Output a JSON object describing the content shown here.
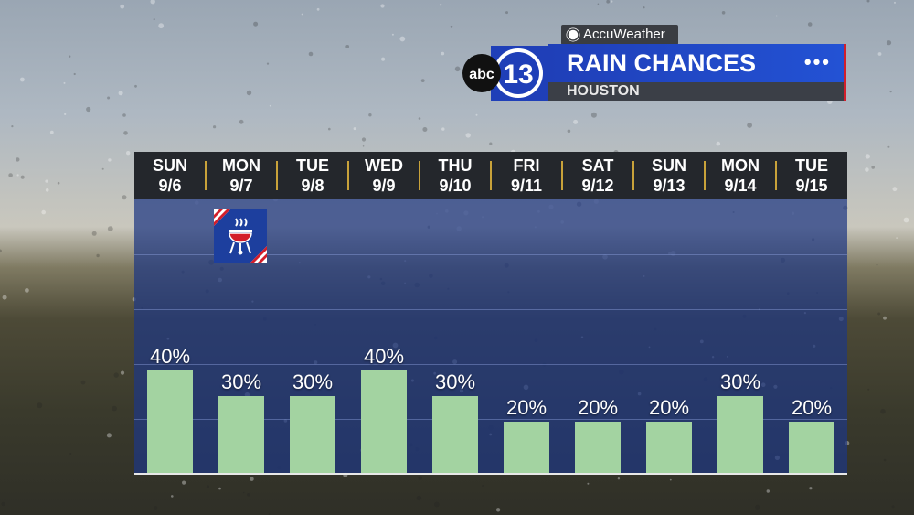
{
  "branding": {
    "provider": "AccuWeather",
    "station_abc": "abc",
    "station_number": "13",
    "title": "RAIN CHANCES",
    "location": "HOUSTON",
    "menu": "•••"
  },
  "icons": {
    "holiday": "bbq-grill-icon",
    "provider": "sun-icon"
  },
  "colors": {
    "bar": "#a3d3a1",
    "title_bar": "#2352d4",
    "accent": "#d31e2b",
    "separator": "#c8a23a"
  },
  "chart_data": {
    "type": "bar",
    "title": "RAIN CHANCES",
    "categories": [
      {
        "day": "SUN",
        "date": "9/6"
      },
      {
        "day": "MON",
        "date": "9/7"
      },
      {
        "day": "TUE",
        "date": "9/8"
      },
      {
        "day": "WED",
        "date": "9/9"
      },
      {
        "day": "THU",
        "date": "9/10"
      },
      {
        "day": "FRI",
        "date": "9/11"
      },
      {
        "day": "SAT",
        "date": "9/12"
      },
      {
        "day": "SUN",
        "date": "9/13"
      },
      {
        "day": "MON",
        "date": "9/14"
      },
      {
        "day": "TUE",
        "date": "9/15"
      }
    ],
    "values": [
      40,
      30,
      30,
      40,
      30,
      20,
      20,
      20,
      30,
      20
    ],
    "labels": [
      "40%",
      "30%",
      "30%",
      "40%",
      "30%",
      "20%",
      "20%",
      "20%",
      "30%",
      "20%"
    ],
    "unit": "%",
    "ylim": [
      0,
      100
    ],
    "grid": true
  }
}
